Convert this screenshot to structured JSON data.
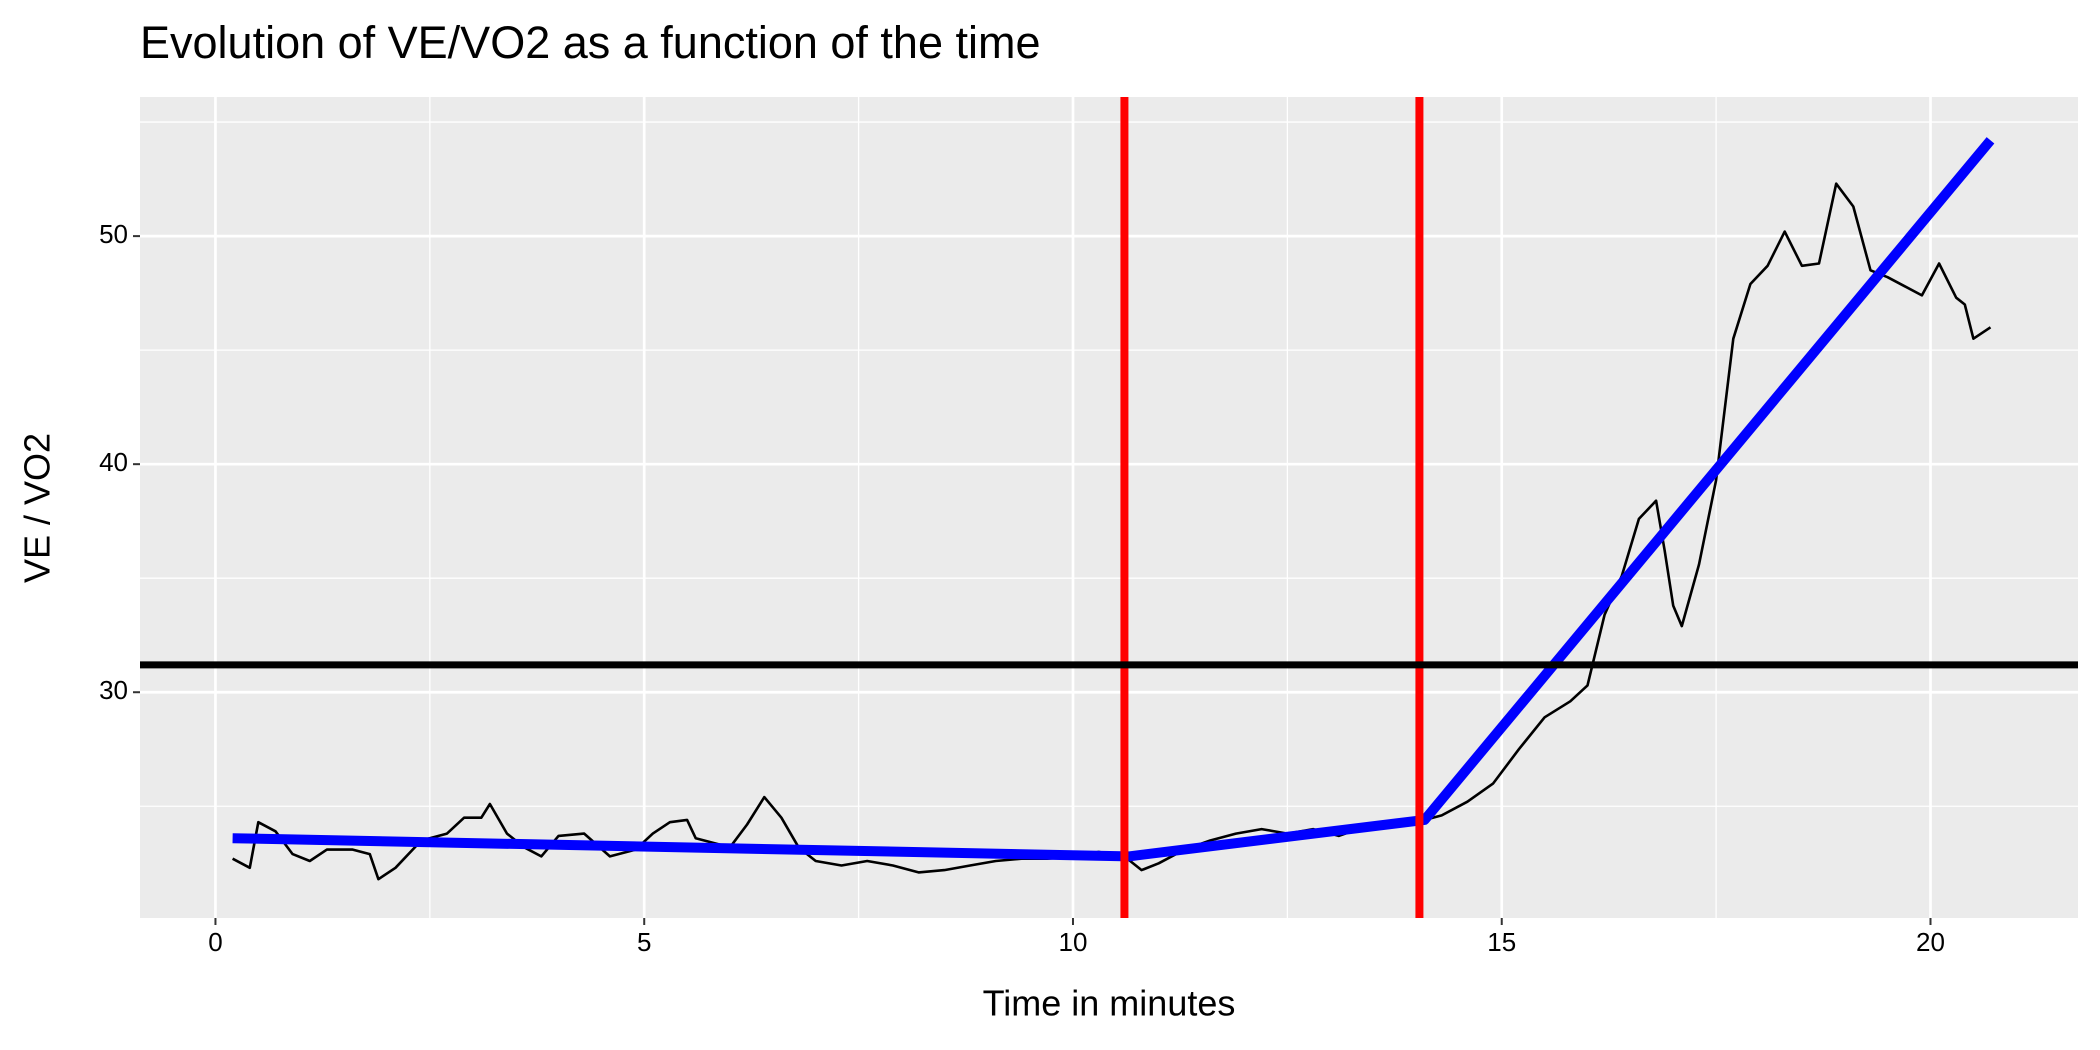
{
  "chart_data": {
    "type": "line",
    "title": "Evolution of VE/VO2 as a function of the time",
    "x_label": "Time in minutes",
    "y_label": "VE / VO2",
    "xlim": [
      -0.88,
      21.72
    ],
    "ylim": [
      20.1,
      56.1
    ],
    "xticks": [
      0,
      5,
      10,
      15,
      20
    ],
    "yticks": [
      30,
      40,
      50
    ],
    "x_minor_grid": [
      2.5,
      7.5,
      12.5,
      17.5
    ],
    "y_minor_grid": [
      25,
      35,
      45,
      55
    ],
    "grid": true,
    "series": [
      {
        "color": "#000000",
        "x": [
          0.2,
          0.4,
          0.5,
          0.7,
          0.9,
          1.1,
          1.3,
          1.6,
          1.8,
          1.9,
          2.1,
          2.4,
          2.7,
          2.9,
          3.1,
          3.2,
          3.4,
          3.6,
          3.8,
          4.0,
          4.3,
          4.6,
          4.9,
          5.1,
          5.3,
          5.5,
          5.6,
          5.8,
          6.0,
          6.2,
          6.4,
          6.6,
          6.8,
          7.0,
          7.3,
          7.6,
          7.9,
          8.2,
          8.5,
          8.8,
          9.1,
          9.4,
          9.7,
          10.0,
          10.3,
          10.6,
          10.8,
          11.0,
          11.3,
          11.6,
          11.9,
          12.2,
          12.5,
          12.8,
          13.1,
          13.4,
          13.7,
          14.0,
          14.3,
          14.6,
          14.9,
          15.2,
          15.5,
          15.8,
          16.0,
          16.2,
          16.4,
          16.6,
          16.8,
          16.9,
          17.0,
          17.1,
          17.3,
          17.5,
          17.7,
          17.9,
          18.1,
          18.3,
          18.5,
          18.7,
          18.9,
          19.1,
          19.3,
          19.5,
          19.7,
          19.9,
          20.1,
          20.3,
          20.4,
          20.5,
          20.7
        ],
        "values": [
          22.7,
          22.3,
          24.3,
          23.9,
          22.9,
          22.6,
          23.1,
          23.1,
          22.9,
          21.8,
          22.3,
          23.5,
          23.8,
          24.5,
          24.5,
          25.1,
          23.8,
          23.2,
          22.8,
          23.7,
          23.8,
          22.8,
          23.1,
          23.8,
          24.3,
          24.4,
          23.6,
          23.4,
          23.2,
          24.2,
          25.4,
          24.5,
          23.2,
          22.6,
          22.4,
          22.6,
          22.4,
          22.1,
          22.2,
          22.4,
          22.6,
          22.7,
          22.7,
          22.8,
          23.0,
          22.8,
          22.2,
          22.5,
          23.1,
          23.5,
          23.8,
          24.0,
          23.8,
          24.0,
          23.7,
          24.1,
          24.2,
          24.3,
          24.6,
          25.2,
          26.0,
          27.5,
          28.9,
          29.6,
          30.3,
          33.4,
          35.1,
          37.6,
          38.4,
          36.2,
          33.8,
          32.9,
          35.6,
          39.3,
          45.5,
          47.9,
          48.7,
          50.2,
          48.7,
          48.8,
          52.3,
          51.3,
          48.5,
          48.2,
          47.8,
          47.4,
          48.8,
          47.3,
          47.0,
          45.5,
          46.0
        ]
      },
      {
        "color": "#0000ff",
        "x": [
          0.2,
          10.65,
          14.1,
          20.7
        ],
        "values": [
          23.6,
          22.8,
          24.4,
          54.2
        ]
      }
    ],
    "vlines": [
      10.6,
      14.04
    ],
    "vline_color": "#ff0000",
    "hlines": [
      31.2
    ],
    "hline_color": "#000000"
  }
}
